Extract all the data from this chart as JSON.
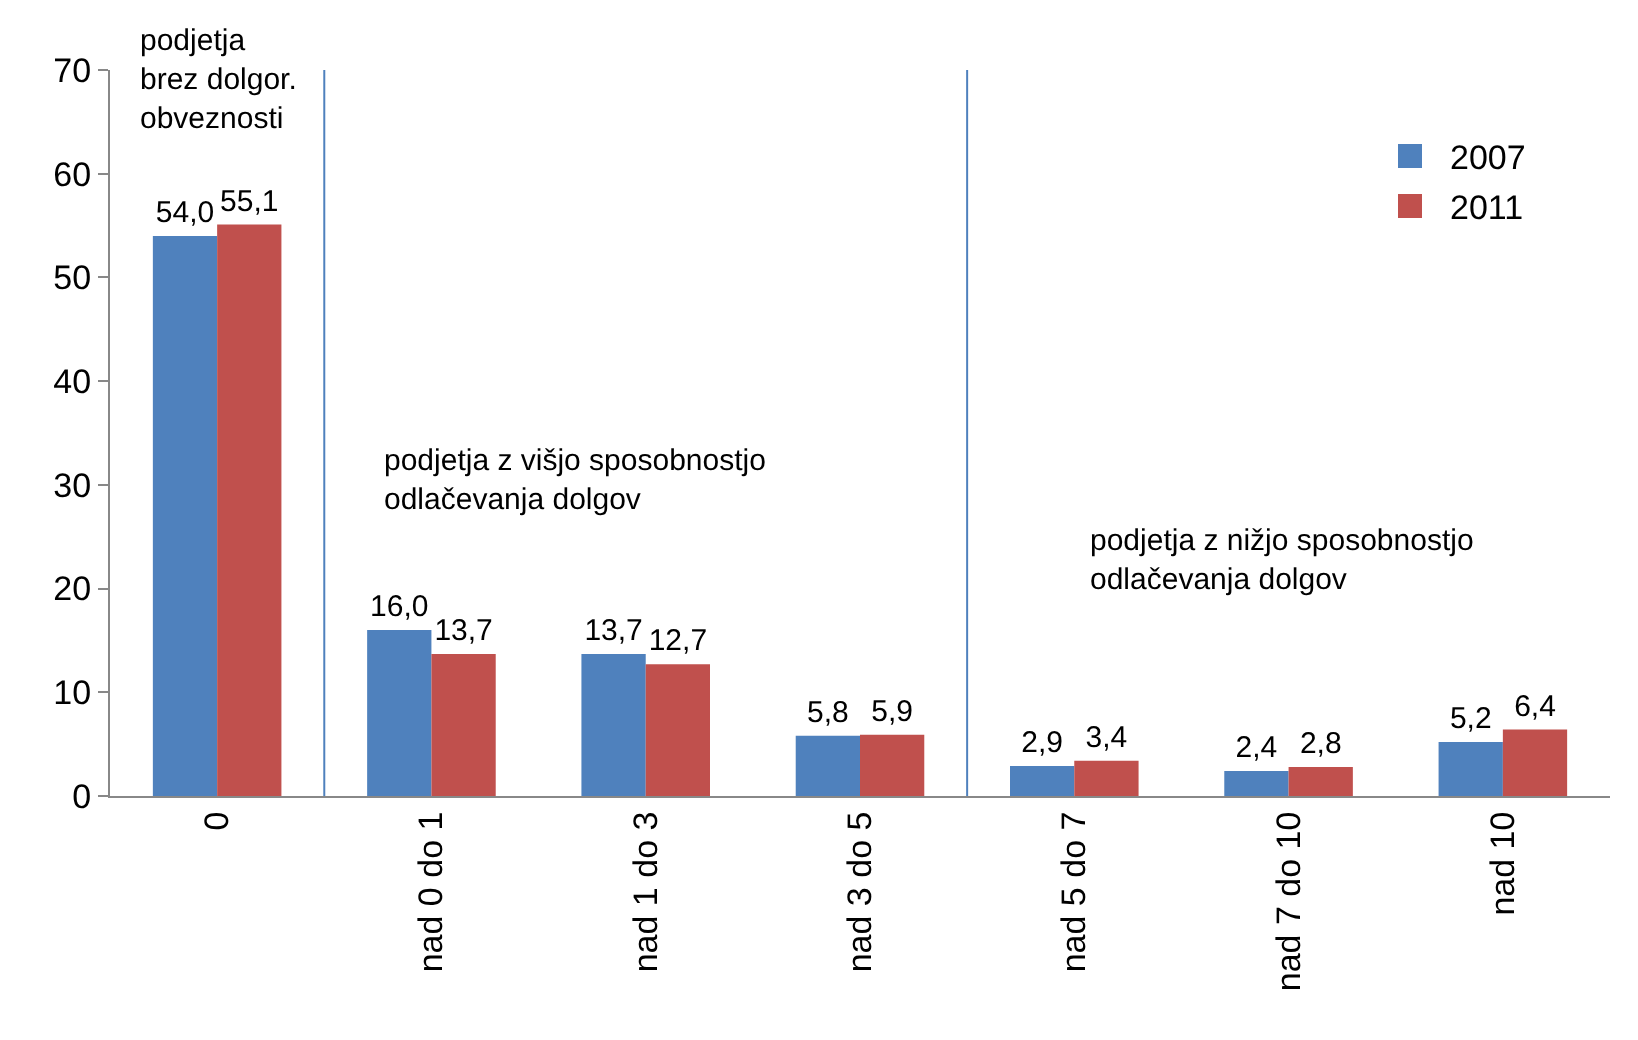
{
  "chart_data": {
    "type": "bar",
    "categories": [
      "0",
      "nad 0 do 1",
      "nad 1 do 3",
      "nad 3 do 5",
      "nad 5 do 7",
      "nad 7 do 10",
      "nad 10"
    ],
    "series": [
      {
        "name": "2007",
        "color": "#4f81bd",
        "values": [
          54.0,
          16.0,
          13.7,
          5.8,
          2.9,
          2.4,
          5.2
        ],
        "value_labels": [
          "54,0",
          "16,0",
          "13,7",
          "5,8",
          "2,9",
          "2,4",
          "5,2"
        ]
      },
      {
        "name": "2011",
        "color": "#c0504d",
        "values": [
          55.1,
          13.7,
          12.7,
          5.9,
          3.4,
          2.8,
          6.4
        ],
        "value_labels": [
          "55,1",
          "13,7",
          "12,7",
          "5,9",
          "3,4",
          "2,8",
          "6,4"
        ]
      }
    ],
    "ylim": [
      0,
      70
    ],
    "yticks": [
      0,
      10,
      20,
      30,
      40,
      50,
      60,
      70
    ],
    "grid": false,
    "legend": "top right",
    "annotations": [
      "podjetja\nbrez dolgor.\nobveznosti",
      "podjetja z višjo sposobnostjo\nodlačevanja dolgov",
      "podjetja z nižjo sposobnostjo\nodlačevanja dolgov"
    ]
  }
}
